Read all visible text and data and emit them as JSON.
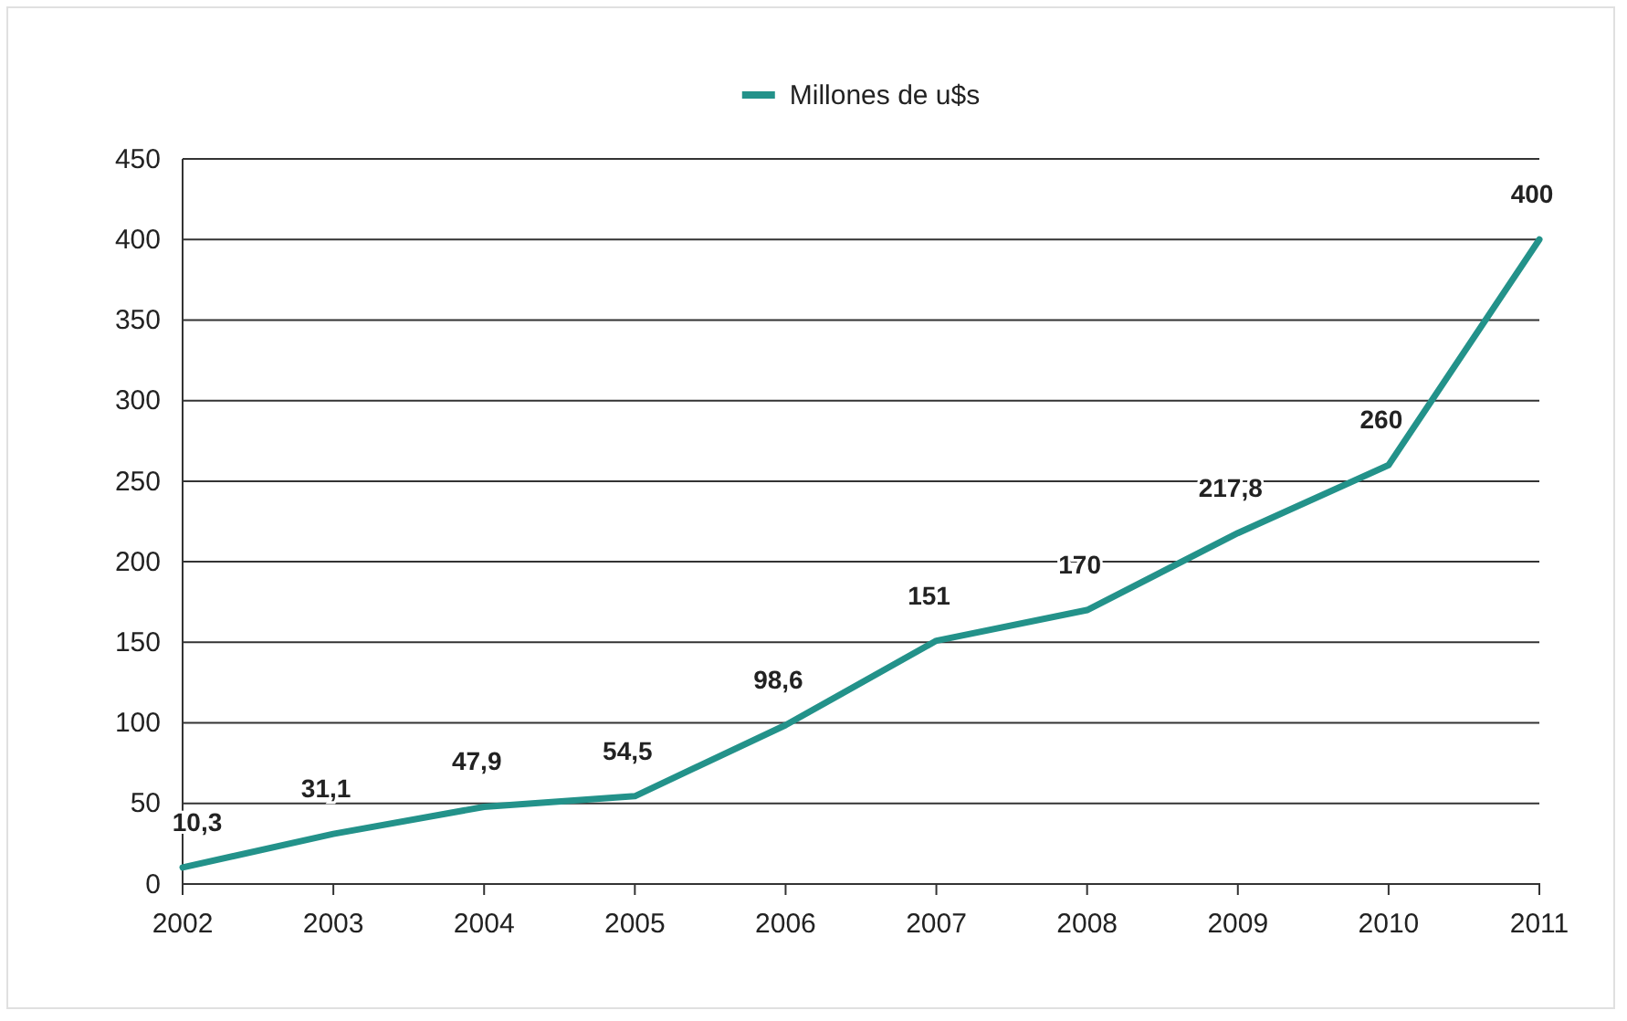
{
  "chart_data": {
    "type": "line",
    "categories": [
      "2002",
      "2003",
      "2004",
      "2005",
      "2006",
      "2007",
      "2008",
      "2009",
      "2010",
      "2011"
    ],
    "series": [
      {
        "name": "Millones de u$s",
        "color": "#23928a",
        "values": [
          10.3,
          31.1,
          47.9,
          54.5,
          98.6,
          151,
          170,
          217.8,
          260,
          400
        ],
        "value_labels": [
          "10,3",
          "31,1",
          "47,9",
          "54,5",
          "98,6",
          "151",
          "170",
          "217,8",
          "260",
          "400"
        ]
      }
    ],
    "ylim": [
      0,
      450
    ],
    "yticks": [
      0,
      50,
      100,
      150,
      200,
      250,
      300,
      350,
      400,
      450
    ],
    "grid": "y",
    "legend": "top",
    "marker": "none",
    "line_style": "solid"
  }
}
